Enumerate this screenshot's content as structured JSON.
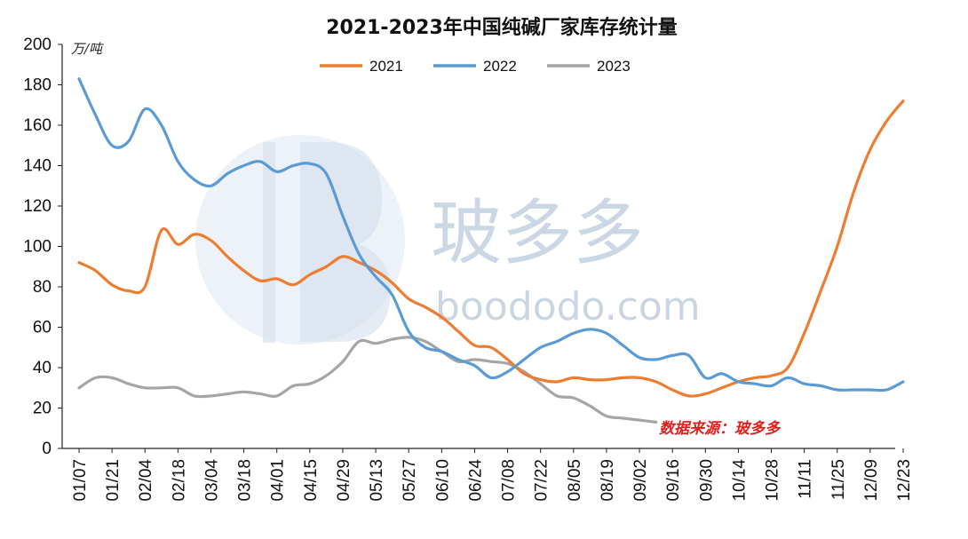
{
  "chart_data": {
    "type": "line",
    "title": "2021-2023年中国纯碱厂家库存统计量",
    "unit_label": "万/吨",
    "source_note": "数据来源：玻多多",
    "watermark": {
      "logo_cn": "玻多多",
      "site": "boododo.com"
    },
    "ylim": [
      0,
      200
    ],
    "y_ticks": [
      0,
      20,
      40,
      60,
      80,
      100,
      120,
      140,
      160,
      180,
      200
    ],
    "x_ticks": [
      "01/07",
      "01/21",
      "02/04",
      "02/18",
      "03/04",
      "03/18",
      "04/01",
      "04/15",
      "04/29",
      "05/13",
      "05/27",
      "06/10",
      "06/24",
      "07/08",
      "07/22",
      "08/05",
      "08/19",
      "09/02",
      "09/16",
      "09/30",
      "10/14",
      "10/28",
      "11/11",
      "11/25",
      "12/09",
      "12/23"
    ],
    "legend_position": "top-center",
    "grid": false,
    "series": [
      {
        "name": "2021",
        "color": "#ed7d31",
        "x": [
          "01/07",
          "01/14",
          "01/21",
          "01/28",
          "02/04",
          "02/11",
          "02/18",
          "02/25",
          "03/04",
          "03/11",
          "03/18",
          "03/25",
          "04/01",
          "04/08",
          "04/15",
          "04/22",
          "04/29",
          "05/06",
          "05/13",
          "05/20",
          "05/27",
          "06/03",
          "06/10",
          "06/17",
          "06/24",
          "07/01",
          "07/08",
          "07/15",
          "07/22",
          "07/29",
          "08/05",
          "08/12",
          "08/19",
          "08/26",
          "09/02",
          "09/09",
          "09/16",
          "09/23",
          "09/30",
          "10/07",
          "10/14",
          "10/21",
          "10/28",
          "11/04",
          "11/11",
          "11/18",
          "11/25",
          "12/02",
          "12/09",
          "12/16",
          "12/23"
        ],
        "values": [
          92,
          88,
          81,
          78,
          80,
          108,
          101,
          106,
          103,
          95,
          88,
          83,
          84,
          81,
          86,
          90,
          95,
          92,
          88,
          82,
          74,
          70,
          65,
          58,
          51,
          50,
          44,
          37,
          34,
          33,
          35,
          34,
          34,
          35,
          35,
          33,
          29,
          26,
          27,
          30,
          33,
          35,
          36,
          40,
          57,
          78,
          100,
          127,
          148,
          162,
          172
        ]
      },
      {
        "name": "2022",
        "color": "#5b9bd5",
        "x": [
          "01/07",
          "01/14",
          "01/21",
          "01/28",
          "02/04",
          "02/11",
          "02/18",
          "02/25",
          "03/04",
          "03/11",
          "03/18",
          "03/25",
          "04/01",
          "04/08",
          "04/15",
          "04/22",
          "04/29",
          "05/06",
          "05/13",
          "05/20",
          "05/27",
          "06/03",
          "06/10",
          "06/17",
          "06/24",
          "07/01",
          "07/08",
          "07/15",
          "07/22",
          "07/29",
          "08/05",
          "08/12",
          "08/19",
          "08/26",
          "09/02",
          "09/09",
          "09/16",
          "09/23",
          "09/30",
          "10/07",
          "10/14",
          "10/21",
          "10/28",
          "11/04",
          "11/11",
          "11/18",
          "11/25",
          "12/02",
          "12/09",
          "12/16",
          "12/23"
        ],
        "values": [
          183,
          165,
          150,
          152,
          168,
          160,
          142,
          133,
          130,
          136,
          140,
          142,
          137,
          140,
          141,
          136,
          115,
          96,
          85,
          76,
          58,
          50,
          48,
          44,
          41,
          35,
          38,
          44,
          50,
          53,
          57,
          59,
          57,
          51,
          45,
          44,
          46,
          46,
          35,
          37,
          33,
          32,
          31,
          35,
          32,
          31,
          29,
          29,
          29,
          29,
          33
        ]
      },
      {
        "name": "2023",
        "color": "#a5a5a5",
        "x": [
          "01/07",
          "01/14",
          "01/21",
          "01/28",
          "02/04",
          "02/11",
          "02/18",
          "02/25",
          "03/04",
          "03/11",
          "03/18",
          "03/25",
          "04/01",
          "04/08",
          "04/15",
          "04/22",
          "04/29",
          "05/06",
          "05/13",
          "05/20",
          "05/27",
          "06/03",
          "06/10",
          "06/17",
          "06/24",
          "07/01",
          "07/08",
          "07/15",
          "07/22",
          "07/29",
          "08/05",
          "08/12",
          "08/19",
          "08/26",
          "09/02",
          "09/09"
        ],
        "values": [
          30,
          35,
          35,
          32,
          30,
          30,
          30,
          26,
          26,
          27,
          28,
          27,
          26,
          31,
          32,
          36,
          43,
          53,
          52,
          54,
          55,
          53,
          48,
          43,
          44,
          43,
          42,
          38,
          32,
          26,
          25,
          21,
          16,
          15,
          14,
          13
        ]
      }
    ]
  }
}
